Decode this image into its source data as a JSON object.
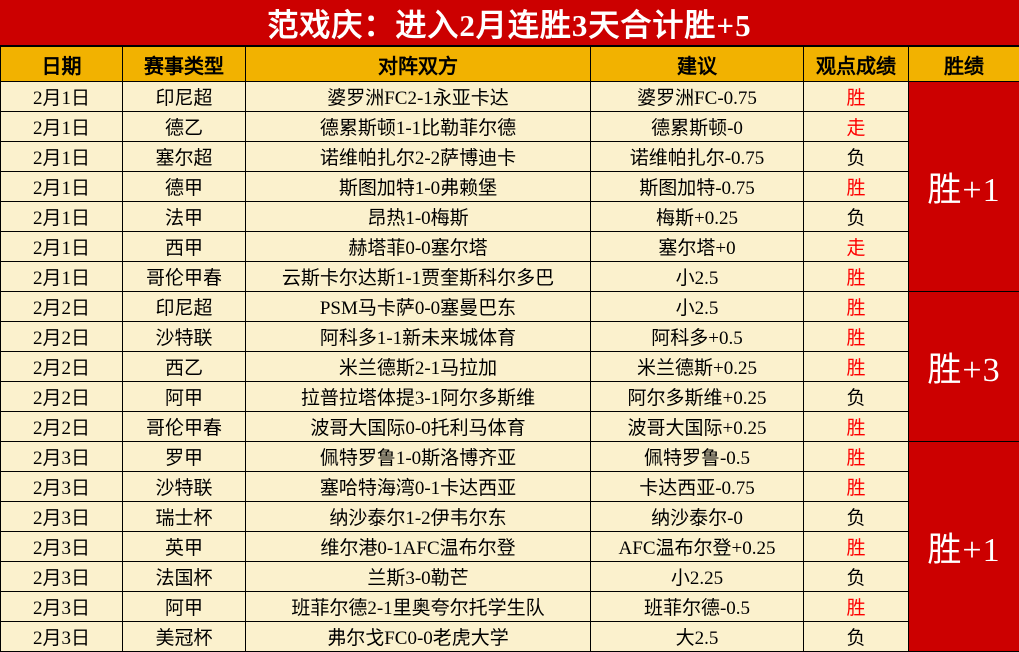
{
  "banner": {
    "title": "范戏庆：进入2月连胜3天合计胜+5"
  },
  "colors": {
    "banner_bg": "#cc0000",
    "header_bg": "#f2b200",
    "cell_bg": "#fbf1cd",
    "group_bg": "#cc0000",
    "win_text": "#fe0000",
    "loss_text": "#000000",
    "banner_text": "#ffffff",
    "group_text": "#ffffff",
    "border": "#000000"
  },
  "table": {
    "headers": [
      "日期",
      "赛事类型",
      "对阵双方",
      "建议",
      "观点成绩",
      "胜绩"
    ],
    "rows": [
      {
        "date": "2月1日",
        "league": "印尼超",
        "match": "婆罗洲FC2-1永亚卡达",
        "advice": "婆罗洲FC-0.75",
        "result": "胜",
        "result_color": "red"
      },
      {
        "date": "2月1日",
        "league": "德乙",
        "match": "德累斯顿1-1比勒菲尔德",
        "advice": "德累斯顿-0",
        "result": "走",
        "result_color": "red"
      },
      {
        "date": "2月1日",
        "league": "塞尔超",
        "match": "诺维帕扎尔2-2萨博迪卡",
        "advice": "诺维帕扎尔-0.75",
        "result": "负",
        "result_color": "black"
      },
      {
        "date": "2月1日",
        "league": "德甲",
        "match": "斯图加特1-0弗赖堡",
        "advice": "斯图加特-0.75",
        "result": "胜",
        "result_color": "red"
      },
      {
        "date": "2月1日",
        "league": "法甲",
        "match": "昂热1-0梅斯",
        "advice": "梅斯+0.25",
        "result": "负",
        "result_color": "black"
      },
      {
        "date": "2月1日",
        "league": "西甲",
        "match": "赫塔菲0-0塞尔塔",
        "advice": "塞尔塔+0",
        "result": "走",
        "result_color": "red"
      },
      {
        "date": "2月1日",
        "league": "哥伦甲春",
        "match": "云斯卡尔达斯1-1贾奎斯科尔多巴",
        "advice": "小2.5",
        "result": "胜",
        "result_color": "red"
      },
      {
        "date": "2月2日",
        "league": "印尼超",
        "match": "PSM马卡萨0-0塞曼巴东",
        "advice": "小2.5",
        "result": "胜",
        "result_color": "red"
      },
      {
        "date": "2月2日",
        "league": "沙特联",
        "match": "阿科多1-1新未来城体育",
        "advice": "阿科多+0.5",
        "result": "胜",
        "result_color": "red"
      },
      {
        "date": "2月2日",
        "league": "西乙",
        "match": "米兰德斯2-1马拉加",
        "advice": "米兰德斯+0.25",
        "result": "胜",
        "result_color": "red"
      },
      {
        "date": "2月2日",
        "league": "阿甲",
        "match": "拉普拉塔体提3-1阿尔多斯维",
        "advice": "阿尔多斯维+0.25",
        "result": "负",
        "result_color": "black"
      },
      {
        "date": "2月2日",
        "league": "哥伦甲春",
        "match": "波哥大国际0-0托利马体育",
        "advice": "波哥大国际+0.25",
        "result": "胜",
        "result_color": "red"
      },
      {
        "date": "2月3日",
        "league": "罗甲",
        "match": "佩特罗鲁1-0斯洛博齐亚",
        "advice": "佩特罗鲁-0.5",
        "result": "胜",
        "result_color": "red"
      },
      {
        "date": "2月3日",
        "league": "沙特联",
        "match": "塞哈特海湾0-1卡达西亚",
        "advice": "卡达西亚-0.75",
        "result": "胜",
        "result_color": "red"
      },
      {
        "date": "2月3日",
        "league": "瑞士杯",
        "match": "纳沙泰尔1-2伊韦尔东",
        "advice": "纳沙泰尔-0",
        "result": "负",
        "result_color": "black"
      },
      {
        "date": "2月3日",
        "league": "英甲",
        "match": "维尔港0-1AFC温布尔登",
        "advice": "AFC温布尔登+0.25",
        "result": "胜",
        "result_color": "red"
      },
      {
        "date": "2月3日",
        "league": "法国杯",
        "match": "兰斯3-0勒芒",
        "advice": "小2.25",
        "result": "负",
        "result_color": "black"
      },
      {
        "date": "2月3日",
        "league": "阿甲",
        "match": "班菲尔德2-1里奥夸尔托学生队",
        "advice": "班菲尔德-0.5",
        "result": "胜",
        "result_color": "red"
      },
      {
        "date": "2月3日",
        "league": "美冠杯",
        "match": "弗尔戈FC0-0老虎大学",
        "advice": "大2.5",
        "result": "负",
        "result_color": "black"
      }
    ],
    "groups": [
      {
        "start": 0,
        "span": 7,
        "label": "胜+1"
      },
      {
        "start": 7,
        "span": 5,
        "label": "胜+3"
      },
      {
        "start": 12,
        "span": 7,
        "label": "胜+1"
      }
    ]
  }
}
